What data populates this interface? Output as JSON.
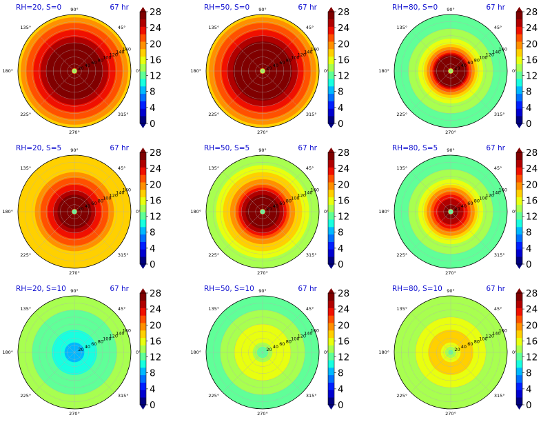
{
  "figure": {
    "time_label": "67 hr",
    "colorbar_ticks": [
      "0",
      "4",
      "8",
      "12",
      "16",
      "20",
      "24",
      "28"
    ],
    "colorbar_colors": [
      "#00007f",
      "#0000d0",
      "#0020ff",
      "#0070ff",
      "#00b8ff",
      "#18ffe0",
      "#60ff98",
      "#a8ff50",
      "#e8ff10",
      "#ffd000",
      "#ff9000",
      "#ff5000",
      "#f01000",
      "#b00000",
      "#800000"
    ],
    "angle_labels": [
      "90°",
      "45°",
      "0°",
      "315°",
      "270°",
      "225°",
      "180°",
      "135°"
    ],
    "radial_labels": [
      "20",
      "40",
      "60",
      "80",
      "100",
      "120",
      "140",
      "160"
    ]
  },
  "chart_data": [
    {
      "type": "heatmap",
      "title": "RH=20, S=0",
      "time": "67 hr",
      "projection": "polar",
      "rlim": [
        0,
        160
      ],
      "colorbar": {
        "min": 0,
        "max": 28,
        "ticks": [
          0,
          4,
          8,
          12,
          16,
          20,
          24,
          28
        ]
      },
      "radial_profile": {
        "r": [
          0,
          10,
          20,
          40,
          60,
          80,
          100,
          120,
          140,
          160
        ],
        "value": [
          14,
          28,
          28,
          28,
          28,
          26,
          24,
          22,
          20,
          18
        ]
      }
    },
    {
      "type": "heatmap",
      "title": "RH=50, S=0",
      "time": "67 hr",
      "projection": "polar",
      "rlim": [
        0,
        160
      ],
      "colorbar": {
        "min": 0,
        "max": 28,
        "ticks": [
          0,
          4,
          8,
          12,
          16,
          20,
          24,
          28
        ]
      },
      "radial_profile": {
        "r": [
          0,
          10,
          20,
          40,
          60,
          80,
          100,
          120,
          140,
          160
        ],
        "value": [
          14,
          28,
          28,
          28,
          28,
          27,
          24,
          22,
          20,
          18
        ]
      }
    },
    {
      "type": "heatmap",
      "title": "RH=80, S=0",
      "time": "67 hr",
      "projection": "polar",
      "rlim": [
        0,
        160
      ],
      "colorbar": {
        "min": 0,
        "max": 28,
        "ticks": [
          0,
          4,
          8,
          12,
          16,
          20,
          24,
          28
        ]
      },
      "radial_profile": {
        "r": [
          0,
          10,
          20,
          40,
          60,
          80,
          100,
          120,
          140,
          160
        ],
        "value": [
          14,
          28,
          28,
          28,
          20,
          16,
          14,
          13,
          13,
          13
        ]
      }
    },
    {
      "type": "heatmap",
      "title": "RH=20, S=5",
      "time": "67 hr",
      "projection": "polar",
      "rlim": [
        0,
        160
      ],
      "colorbar": {
        "min": 0,
        "max": 28,
        "ticks": [
          0,
          4,
          8,
          12,
          16,
          20,
          24,
          28
        ]
      },
      "radial_profile": {
        "r": [
          0,
          10,
          20,
          40,
          60,
          80,
          100,
          120,
          140,
          160
        ],
        "value": [
          12,
          28,
          28,
          28,
          24,
          22,
          20,
          18,
          18,
          17
        ]
      }
    },
    {
      "type": "heatmap",
      "title": "RH=50, S=5",
      "time": "67 hr",
      "projection": "polar",
      "rlim": [
        0,
        160
      ],
      "colorbar": {
        "min": 0,
        "max": 28,
        "ticks": [
          0,
          4,
          8,
          12,
          16,
          20,
          24,
          28
        ]
      },
      "radial_profile": {
        "r": [
          0,
          10,
          20,
          40,
          60,
          80,
          100,
          120,
          140,
          160
        ],
        "value": [
          12,
          28,
          28,
          28,
          24,
          20,
          18,
          16,
          14,
          13
        ]
      }
    },
    {
      "type": "heatmap",
      "title": "RH=80, S=5",
      "time": "67 hr",
      "projection": "polar",
      "rlim": [
        0,
        160
      ],
      "colorbar": {
        "min": 0,
        "max": 28,
        "ticks": [
          0,
          4,
          8,
          12,
          16,
          20,
          24,
          28
        ]
      },
      "radial_profile": {
        "r": [
          0,
          10,
          20,
          40,
          60,
          80,
          100,
          120,
          140,
          160
        ],
        "value": [
          12,
          28,
          26,
          24,
          20,
          16,
          14,
          13,
          12,
          12
        ]
      }
    },
    {
      "type": "heatmap",
      "title": "RH=20, S=10",
      "time": "67 hr",
      "projection": "polar",
      "rlim": [
        0,
        160
      ],
      "colorbar": {
        "min": 0,
        "max": 28,
        "ticks": [
          0,
          4,
          8,
          12,
          16,
          20,
          24,
          28
        ]
      },
      "radial_profile": {
        "r": [
          0,
          10,
          20,
          40,
          60,
          80,
          100,
          120,
          140,
          160
        ],
        "value": [
          8,
          8,
          9,
          10,
          11,
          12,
          13,
          13,
          14,
          14
        ]
      }
    },
    {
      "type": "heatmap",
      "title": "RH=50, S=10",
      "time": "67 hr",
      "projection": "polar",
      "rlim": [
        0,
        160
      ],
      "colorbar": {
        "min": 0,
        "max": 28,
        "ticks": [
          0,
          4,
          8,
          12,
          16,
          20,
          24,
          28
        ]
      },
      "radial_profile": {
        "r": [
          0,
          10,
          20,
          40,
          60,
          80,
          100,
          120,
          140,
          160
        ],
        "value": [
          12,
          12,
          14,
          16,
          16,
          15,
          14,
          13,
          13,
          13
        ]
      }
    },
    {
      "type": "heatmap",
      "title": "RH=80, S=10",
      "time": "67 hr",
      "projection": "polar",
      "rlim": [
        0,
        160
      ],
      "colorbar": {
        "min": 0,
        "max": 28,
        "ticks": [
          0,
          4,
          8,
          12,
          16,
          20,
          24,
          28
        ]
      },
      "radial_profile": {
        "r": [
          0,
          10,
          20,
          40,
          60,
          80,
          100,
          120,
          140,
          160
        ],
        "value": [
          12,
          14,
          16,
          18,
          17,
          16,
          15,
          14,
          14,
          14
        ]
      }
    }
  ]
}
